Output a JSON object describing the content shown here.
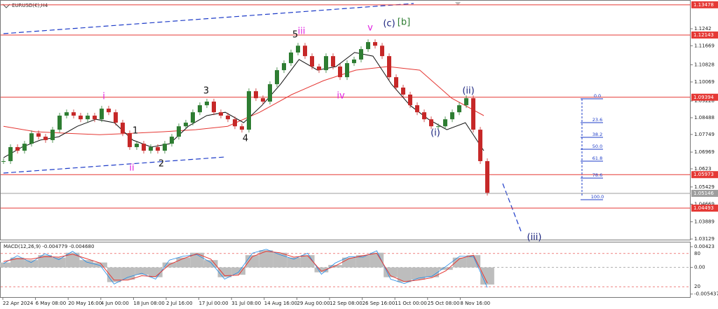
{
  "chart_data": {
    "type": "candlestick",
    "title": "EURUSD(€),H4",
    "x_labels": [
      "22 Apr 2024",
      "6 May 08:00",
      "20 May 16:00",
      "4 Jun 00:00",
      "18 Jun 08:00",
      "2 Jul 16:00",
      "17 Jul 00:00",
      "31 Jul 08:00",
      "14 Aug 16:00",
      "29 Aug 00:00",
      "12 Sep 08:00",
      "26 Sep 16:00",
      "11 Oct 00:00",
      "25 Oct 08:00",
      "8 Nov 16:00"
    ],
    "ylim": [
      1.0307,
      1.1369
    ],
    "yticks": [
      1.03129,
      1.03889,
      1.04669,
      1.05429,
      1.0623,
      1.06969,
      1.07749,
      1.08488,
      1.09228,
      1.10069,
      1.10828,
      1.11669,
      1.1242
    ],
    "up_color": "#2e7d32",
    "down_color": "#c62828",
    "price": [
      1.0657,
      1.0719,
      1.0703,
      1.0734,
      1.078,
      1.0765,
      1.075,
      1.0796,
      1.0858,
      1.0873,
      1.0858,
      1.0842,
      1.0858,
      1.0842,
      1.0889,
      1.0873,
      1.0827,
      1.078,
      1.0719,
      1.0734,
      1.0703,
      1.0719,
      1.0703,
      1.0734,
      1.0765,
      1.0811,
      1.0827,
      1.0873,
      1.0904,
      1.092,
      1.0873,
      1.0858,
      1.0842,
      1.0811,
      1.0796,
      1.0966,
      1.0935,
      1.092,
      1.0997,
      1.1059,
      1.109,
      1.1137,
      1.1167,
      1.1121,
      1.1075,
      1.1059,
      1.1121,
      1.1075,
      1.1028,
      1.109,
      1.1106,
      1.1152,
      1.1183,
      1.1167,
      1.1121,
      1.1028,
      1.0982,
      1.0951,
      1.0904,
      1.0873,
      1.0842,
      1.0811,
      1.0811,
      1.0842,
      1.0873,
      1.0904,
      1.0935,
      1.0796,
      1.0657,
      1.0517
    ],
    "ma_fast": {
      "color": "#111111",
      "values": [
        1.0672,
        1.0719,
        1.075,
        1.0765,
        1.0811,
        1.0842,
        1.0827,
        1.075,
        1.0719,
        1.0734,
        1.0811,
        1.0858,
        1.0873,
        1.0827,
        1.0904,
        1.0997,
        1.1106,
        1.1059,
        1.1075,
        1.1137,
        1.1121,
        1.0997,
        1.0904,
        1.0842,
        1.0796,
        1.0827,
        1.0703
      ]
    },
    "ma_slow": {
      "color": "#e53935",
      "values": [
        1.0811,
        1.0787,
        1.078,
        1.0774,
        1.078,
        1.0787,
        1.0796,
        1.0811,
        1.0873,
        1.0951,
        1.1013,
        1.1059,
        1.1075,
        1.1059,
        1.0935,
        1.0858
      ]
    },
    "levels": [
      {
        "value": 1.13478,
        "color": "#e53935"
      },
      {
        "value": 1.12143,
        "color": "#e53935"
      },
      {
        "value": 1.09394,
        "color": "#e53935"
      },
      {
        "value": 1.05973,
        "color": "#e53935"
      },
      {
        "value": 1.05146,
        "color": "#9e9e9e"
      },
      {
        "value": 1.04493,
        "color": "#e53935"
      }
    ],
    "wave_labels": [
      {
        "text": "i",
        "color": "#e020e0"
      },
      {
        "text": "ii",
        "color": "#e020e0"
      },
      {
        "text": "iii",
        "color": "#e020e0"
      },
      {
        "text": "iv",
        "color": "#e020e0"
      },
      {
        "text": "v",
        "color": "#e020e0"
      },
      {
        "text": "1",
        "color": "#111111"
      },
      {
        "text": "2",
        "color": "#111111"
      },
      {
        "text": "3",
        "color": "#111111"
      },
      {
        "text": "4",
        "color": "#111111"
      },
      {
        "text": "5",
        "color": "#111111"
      },
      {
        "text": "(c)",
        "color": "#1a237e"
      },
      {
        "text": "[b]",
        "color": "#2e7d32"
      },
      {
        "text": "(i)",
        "color": "#1a237e"
      },
      {
        "text": "(ii)",
        "color": "#1a237e"
      },
      {
        "text": "(iii)",
        "color": "#1a237e"
      }
    ],
    "fib_color": "#1e3cc8",
    "fib_levels": [
      {
        "value": 0,
        "label": "0.0"
      },
      23.6,
      38.2,
      {
        "value": 50,
        "label": "50.0"
      },
      61.8,
      78.6,
      {
        "value": 100,
        "label": "100.0"
      }
    ],
    "macd": {
      "title": "MACD(12,26,9) -0.004779 -0.004680",
      "ylim": [
        -0.0062,
        0.0051
      ],
      "yticks": [
        0.00423,
        {
          "value": 0,
          "label": "0.00"
        },
        -0.005437
      ],
      "osc_ylim": [
        0,
        100
      ],
      "osc_ticks": [
        80,
        20
      ],
      "histogram_color": "#bdbdbd",
      "signal_color": "#e53935",
      "line_color": "#1e88e5",
      "histogram": [
        0.001,
        0.002,
        0.0015,
        0.0025,
        0.002,
        0.003,
        0.0015,
        0.001,
        -0.003,
        -0.0025,
        -0.0015,
        -0.002,
        0.001,
        0.002,
        0.003,
        0.0015,
        -0.002,
        -0.0015,
        0.0025,
        0.0035,
        0.003,
        0.002,
        0.0025,
        -0.001,
        0.0005,
        0.002,
        0.0025,
        0.003,
        -0.002,
        -0.003,
        -0.0025,
        -0.002,
        -0.0005,
        0.002,
        0.0025,
        -0.0035
      ],
      "signal": [
        0.0012,
        0.0018,
        0.0017,
        0.0022,
        0.0021,
        0.0027,
        0.0018,
        0.0009,
        -0.0026,
        -0.0026,
        -0.0017,
        -0.0019,
        0.0006,
        0.0018,
        0.0028,
        0.0017,
        -0.0017,
        -0.0016,
        0.0022,
        0.0033,
        0.003,
        0.0021,
        0.0024,
        -0.0008,
        0.0003,
        0.0018,
        0.0024,
        0.0029,
        -0.0017,
        -0.0029,
        -0.0026,
        -0.0021,
        -0.0007,
        0.0018,
        0.0025,
        -0.0032
      ],
      "line": [
        0.0008,
        0.0024,
        0.001,
        0.0028,
        0.0016,
        0.0033,
        0.0011,
        0.0004,
        -0.0034,
        -0.002,
        -0.0012,
        -0.0024,
        0.0015,
        0.0023,
        0.0026,
        0.001,
        -0.0024,
        -0.001,
        0.0029,
        0.0037,
        0.0026,
        0.0017,
        0.0029,
        -0.0014,
        0.0009,
        0.0022,
        0.0021,
        0.0034,
        -0.0024,
        -0.0033,
        -0.0022,
        -0.0018,
        0.0002,
        0.0023,
        0.0022,
        -0.0041
      ]
    }
  }
}
